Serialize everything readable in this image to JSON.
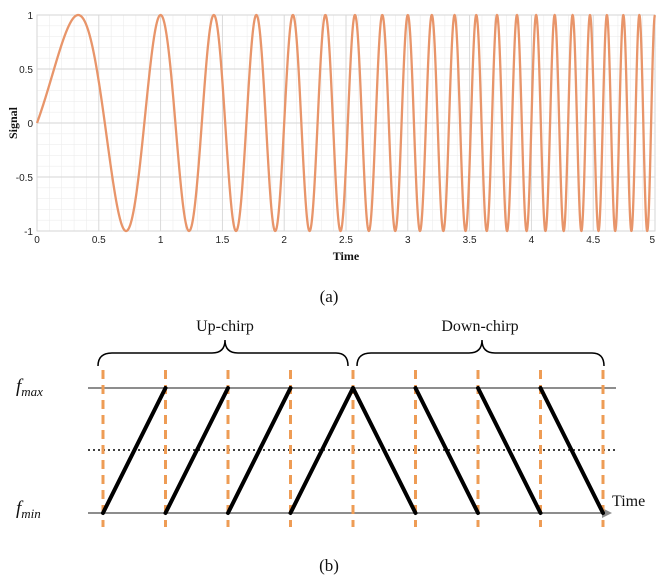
{
  "chart_data": [
    {
      "type": "line",
      "title": "",
      "xlabel": "Time",
      "ylabel": "Signal",
      "xlim": [
        0,
        5
      ],
      "ylim": [
        -1,
        1
      ],
      "x_ticks": [
        "0",
        "0.5",
        "1",
        "1.5",
        "2",
        "2.5",
        "3",
        "3.5",
        "4",
        "4.5",
        "5"
      ],
      "y_ticks": [
        "1",
        "0.5",
        "0",
        "-0.5",
        "-1"
      ],
      "grid": true,
      "series_color": "#e8956a",
      "chirp": {
        "function": "sin",
        "start_frequency": 0.5,
        "frequency_rate": 1.5
      },
      "caption": "(a)"
    },
    {
      "type": "diagram",
      "labels": {
        "fmax_main": "f",
        "fmax_sub": "max",
        "fmin_main": "f",
        "fmin_sub": "min",
        "time": "Time",
        "up": "Up-chirp",
        "down": "Down-chirp"
      },
      "up_chirps": 4,
      "down_chirps": 4,
      "dashed_color": "#ee9c55",
      "caption": "(b)"
    }
  ]
}
